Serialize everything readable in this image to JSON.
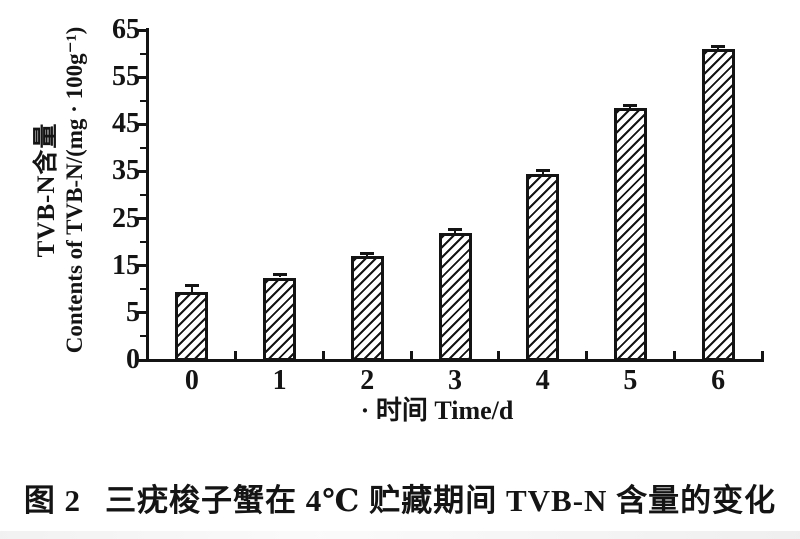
{
  "colors": {
    "ink": "#141414",
    "paper": "#ffffff"
  },
  "chart_data": {
    "type": "bar",
    "categories": [
      "0",
      "1",
      "2",
      "3",
      "4",
      "5",
      "6"
    ],
    "values": [
      9.5,
      12.5,
      17,
      22,
      34.5,
      48.5,
      61
    ],
    "errors": [
      1.2,
      0.6,
      0.6,
      0.6,
      0.7,
      0.5,
      0.6
    ],
    "yticks": [
      0,
      5,
      15,
      25,
      35,
      45,
      55,
      65
    ],
    "ylim": [
      0,
      65
    ],
    "xlabel": "· 时间 Time/d",
    "ylabel_cn": "TVB-N含量",
    "ylabel_en": "Contents of TVB-N/(mg · 100g⁻¹)",
    "bar_style": "diagonal-hatch",
    "legend": "none",
    "grid": "off",
    "axis_note": "labeled ticks 0,5,15,25,35,45,55,65 are evenly spaced with one minor tick between each pair; bars have small error bars at top"
  },
  "caption": {
    "figure_label": "图 2",
    "text": "三疣梭子蟹在 4℃ 贮藏期间 TVB-N 含量的变化"
  }
}
